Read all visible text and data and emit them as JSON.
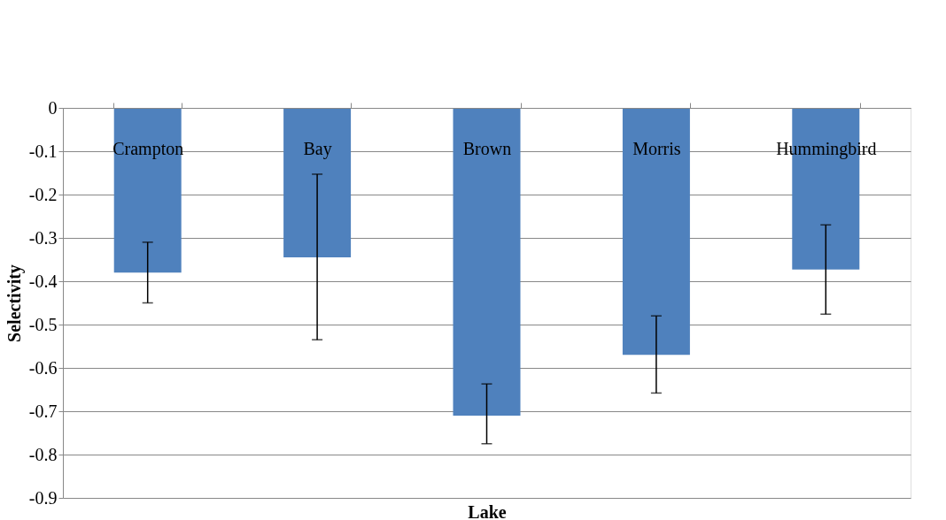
{
  "chart_data": {
    "type": "bar",
    "xlabel": "Lake",
    "ylabel": "Selectivity",
    "categories": [
      "Crampton",
      "Bay",
      "Brown",
      "Morris",
      "Hummingbird"
    ],
    "values": [
      -0.38,
      -0.345,
      -0.71,
      -0.57,
      -0.373
    ],
    "errors": [
      [
        -0.45,
        -0.31
      ],
      [
        -0.535,
        -0.153
      ],
      [
        -0.775,
        -0.637
      ],
      [
        -0.658,
        -0.48
      ],
      [
        -0.476,
        -0.27
      ]
    ],
    "color": "#4f81bd",
    "ylim": [
      -0.9,
      0
    ],
    "yticks": [
      0,
      -0.1,
      -0.2,
      -0.3,
      -0.4,
      -0.5,
      -0.6,
      -0.7,
      -0.8,
      -0.9
    ],
    "grid": "y"
  }
}
